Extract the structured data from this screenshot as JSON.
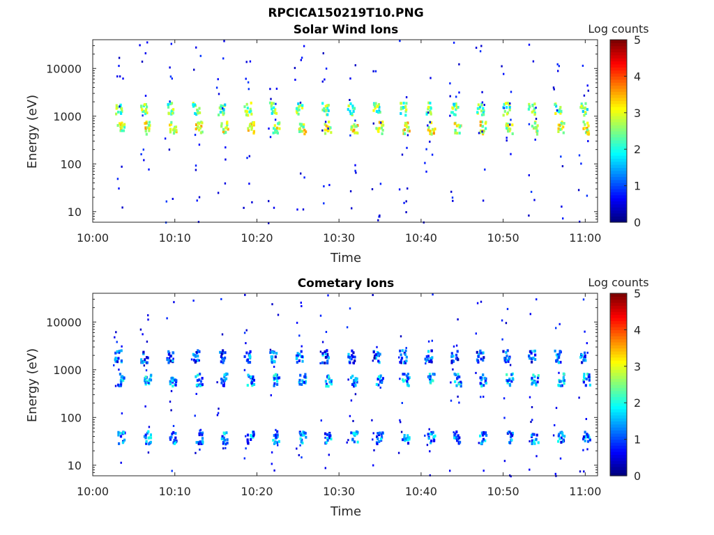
{
  "figure": {
    "filename_title": "RPCICA150219T10.PNG"
  },
  "chart_data": [
    {
      "type": "heatmap",
      "title": "Solar Wind Ions",
      "xlabel": "Time",
      "ylabel": "Energy (eV)",
      "x_ticks": [
        "10:00",
        "10:10",
        "10:20",
        "10:30",
        "10:40",
        "10:50",
        "11:00"
      ],
      "x_range_minutes": [
        0,
        61.5
      ],
      "y_ticks": [
        "10",
        "100",
        "1000",
        "10000"
      ],
      "y_tick_values": [
        10,
        100,
        1000,
        10000
      ],
      "y_range": [
        6,
        40000
      ],
      "y_scale": "log",
      "colorbar": {
        "label": "Log counts",
        "min": 0,
        "max": 5,
        "ticks": [
          "0",
          "1",
          "2",
          "3",
          "4",
          "5"
        ],
        "colormap": "jet"
      },
      "scan_period_min": 3.15,
      "bands": [
        {
          "energy_ev": 1500,
          "log_counts": 2.4
        },
        {
          "energy_ev": 600,
          "log_counts": 2.9
        }
      ],
      "sweep_start_minutes": [
        3.0,
        6.2,
        9.3,
        12.5,
        15.6,
        18.8,
        21.9,
        25.1,
        28.2,
        31.4,
        34.5,
        37.7,
        40.8,
        44.0,
        47.1,
        50.3,
        53.4,
        56.6,
        59.7
      ],
      "background_noise_log_counts": 0.3
    },
    {
      "type": "heatmap",
      "title": "Cometary Ions",
      "xlabel": "Time",
      "ylabel": "Energy (eV)",
      "x_ticks": [
        "10:00",
        "10:10",
        "10:20",
        "10:30",
        "10:40",
        "10:50",
        "11:00"
      ],
      "x_range_minutes": [
        0,
        61.5
      ],
      "y_ticks": [
        "10",
        "100",
        "1000",
        "10000"
      ],
      "y_tick_values": [
        10,
        100,
        1000,
        10000
      ],
      "y_range": [
        6,
        40000
      ],
      "y_scale": "log",
      "colorbar": {
        "label": "Log counts",
        "min": 0,
        "max": 5,
        "ticks": [
          "0",
          "1",
          "2",
          "3",
          "4",
          "5"
        ],
        "colormap": "jet"
      },
      "scan_period_min": 3.15,
      "bands": [
        {
          "energy_ev": 2000,
          "log_counts": 1.0
        },
        {
          "energy_ev": 650,
          "log_counts": 1.4
        },
        {
          "energy_ev": 40,
          "log_counts": 1.2
        }
      ],
      "sweep_start_minutes": [
        3.0,
        6.2,
        9.3,
        12.5,
        15.6,
        18.8,
        21.9,
        25.1,
        28.2,
        31.4,
        34.5,
        37.7,
        40.8,
        44.0,
        47.1,
        50.3,
        53.4,
        56.6,
        59.7
      ],
      "background_noise_log_counts": 0.3
    }
  ]
}
